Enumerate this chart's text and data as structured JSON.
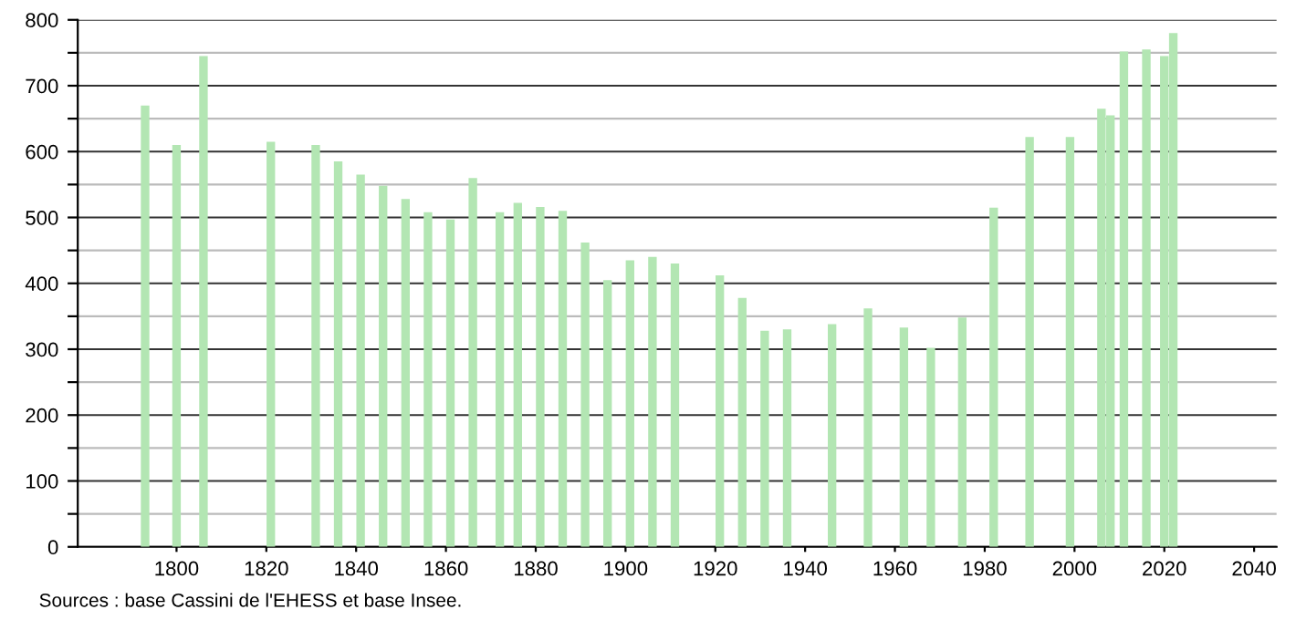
{
  "chart_data": {
    "type": "bar",
    "x": [
      1793,
      1800,
      1806,
      1821,
      1831,
      1836,
      1841,
      1846,
      1851,
      1856,
      1861,
      1866,
      1872,
      1876,
      1881,
      1886,
      1891,
      1896,
      1901,
      1906,
      1911,
      1921,
      1926,
      1931,
      1936,
      1946,
      1954,
      1962,
      1968,
      1975,
      1982,
      1990,
      1999,
      2006,
      2008,
      2011,
      2016,
      2020,
      2022
    ],
    "values": [
      670,
      610,
      745,
      615,
      610,
      585,
      565,
      548,
      528,
      508,
      497,
      560,
      508,
      522,
      516,
      510,
      462,
      405,
      435,
      440,
      430,
      412,
      378,
      328,
      330,
      338,
      362,
      333,
      302,
      348,
      515,
      622,
      622,
      665,
      655,
      752,
      755,
      745,
      780
    ],
    "color": "#b3e6b3",
    "xlim": [
      1778,
      2045
    ],
    "xticks": [
      1800,
      1820,
      1840,
      1860,
      1880,
      1900,
      1920,
      1940,
      1960,
      1980,
      2000,
      2020,
      2040
    ],
    "ylim": [
      0,
      800
    ],
    "yticks": [
      0,
      {
        "value": 50,
        "label": null
      },
      100,
      {
        "value": 150,
        "label": null
      },
      200,
      {
        "value": 250,
        "label": null
      },
      300,
      {
        "value": 350,
        "label": null
      },
      400,
      {
        "value": 450,
        "label": null
      },
      500,
      {
        "value": 550,
        "label": null
      },
      600,
      {
        "value": 650,
        "label": null
      },
      700,
      {
        "value": 750,
        "label": null
      },
      800
    ],
    "grid": "y",
    "annotations": [
      "Sources : base Cassini de l'EHESS et base Insee."
    ]
  }
}
